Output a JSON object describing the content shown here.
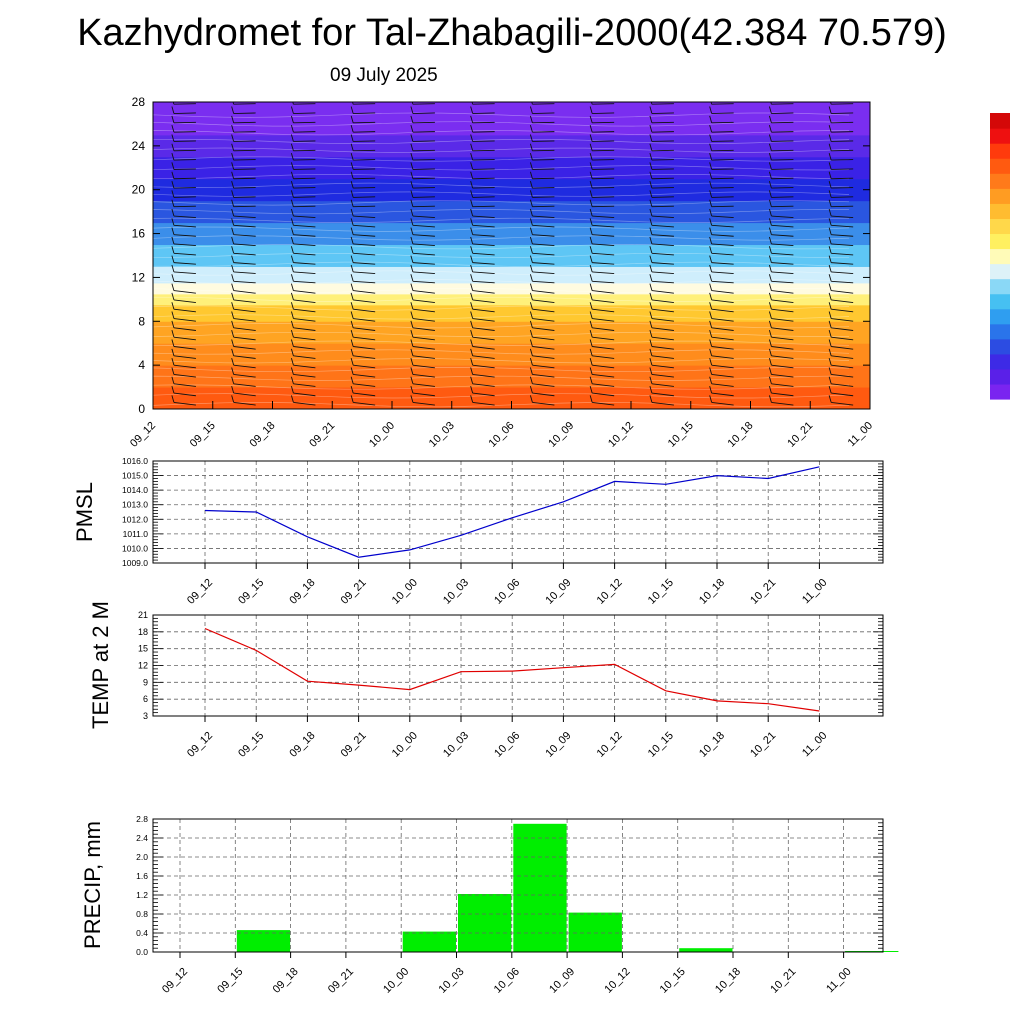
{
  "header": {
    "title": "Kazhydromet for Tal-Zhabagili-2000(42.384 70.579)",
    "date": "09 July 2025"
  },
  "chart_data": [
    {
      "type": "heatmap",
      "title": "",
      "xlabel": "",
      "ylabel": "",
      "x_ticks": [
        "09_12",
        "09_15",
        "09_18",
        "09_21",
        "10_00",
        "10_03",
        "10_06",
        "10_09",
        "10_12",
        "10_15",
        "10_18",
        "10_21",
        "11_00"
      ],
      "y_ticks": [
        "0",
        "4",
        "8",
        "12",
        "16",
        "20",
        "24",
        "28"
      ],
      "ylim": [
        0,
        28
      ],
      "color_bands": [
        {
          "y0": 0,
          "y1": 2,
          "color": "#ff5a10"
        },
        {
          "y0": 2,
          "y1": 4,
          "color": "#ff7418"
        },
        {
          "y0": 4,
          "y1": 6,
          "color": "#ff8c1c"
        },
        {
          "y0": 6,
          "y1": 8,
          "color": "#ffa422"
        },
        {
          "y0": 8,
          "y1": 9.5,
          "color": "#ffc830"
        },
        {
          "y0": 9.5,
          "y1": 10.5,
          "color": "#fff07a"
        },
        {
          "y0": 10.5,
          "y1": 11.5,
          "color": "#fffbe0"
        },
        {
          "y0": 11.5,
          "y1": 13,
          "color": "#cfeefc"
        },
        {
          "y0": 13,
          "y1": 15,
          "color": "#5ec6f5"
        },
        {
          "y0": 15,
          "y1": 17,
          "color": "#3b8eea"
        },
        {
          "y0": 17,
          "y1": 19,
          "color": "#2a56e0"
        },
        {
          "y0": 19,
          "y1": 21,
          "color": "#1f2be0"
        },
        {
          "y0": 21,
          "y1": 23,
          "color": "#3a22e6"
        },
        {
          "y0": 23,
          "y1": 25,
          "color": "#5a2ae8"
        },
        {
          "y0": 25,
          "y1": 28,
          "color": "#7a2ef0"
        }
      ],
      "colorbar": [
        "#7a24f0",
        "#5a20e8",
        "#3d2ae6",
        "#2c4ce2",
        "#2a74ea",
        "#2f9ef0",
        "#46c0f2",
        "#8ad8f6",
        "#ddf2f8",
        "#fffbb8",
        "#fff060",
        "#ffd84a",
        "#ffbc30",
        "#ff9c22",
        "#ff7a1a",
        "#ff5a10",
        "#ff3a0c",
        "#ee1010",
        "#d40808"
      ]
    },
    {
      "type": "line",
      "ylabel": "PMSL",
      "x": [
        "09_12",
        "09_15",
        "09_18",
        "09_21",
        "10_00",
        "10_03",
        "10_06",
        "10_09",
        "10_12",
        "10_15",
        "10_18",
        "10_21",
        "11_00"
      ],
      "series": [
        {
          "values": [
            1012.6,
            1012.5,
            1010.8,
            1009.4,
            1009.9,
            1010.9,
            1012.1,
            1013.2,
            1014.6,
            1014.4,
            1015.0,
            1014.8,
            1015.6
          ]
        }
      ],
      "ylim": [
        1009.0,
        1016.0
      ],
      "y_ticks": [
        "1009.0",
        "1010.0",
        "1011.0",
        "1012.0",
        "1013.0",
        "1014.0",
        "1015.0",
        "1016.0"
      ],
      "line_color": "#0000cc"
    },
    {
      "type": "line",
      "ylabel": "TEMP at 2 M",
      "x": [
        "09_12",
        "09_15",
        "09_18",
        "09_21",
        "10_00",
        "10_03",
        "10_06",
        "10_09",
        "10_12",
        "10_15",
        "10_18",
        "10_21",
        "11_00"
      ],
      "series": [
        {
          "values": [
            18.6,
            14.7,
            9.2,
            8.5,
            7.7,
            10.9,
            11.0,
            11.6,
            12.2,
            7.5,
            5.7,
            5.2,
            3.9
          ]
        }
      ],
      "ylim": [
        3,
        21
      ],
      "y_ticks": [
        "3",
        "6",
        "9",
        "12",
        "15",
        "18",
        "21"
      ],
      "line_color": "#e00000"
    },
    {
      "type": "bar",
      "ylabel": "PRECIP, mm",
      "categories": [
        "09_12",
        "09_15",
        "09_18",
        "09_21",
        "10_00",
        "10_03",
        "10_06",
        "10_09",
        "10_12",
        "10_15",
        "10_18",
        "10_21",
        "11_00"
      ],
      "values": [
        0.0,
        0.46,
        0.0,
        0.0,
        0.43,
        1.22,
        2.7,
        0.83,
        0.0,
        0.08,
        0.0,
        0.0,
        0.02
      ],
      "ylim": [
        0.0,
        2.8
      ],
      "y_ticks": [
        "0.0",
        "0.4",
        "0.8",
        "1.2",
        "1.6",
        "2.0",
        "2.4",
        "2.8"
      ],
      "bar_color": "#00ee00"
    }
  ]
}
